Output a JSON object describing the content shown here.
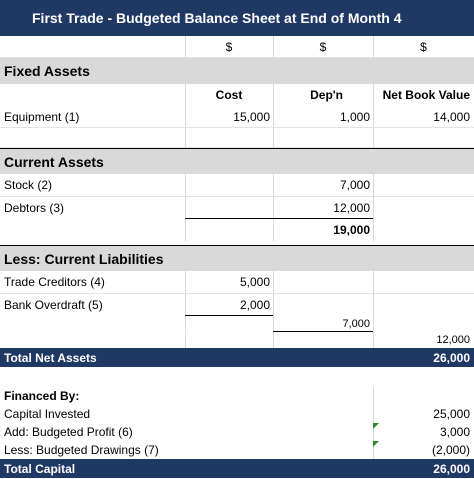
{
  "title": "First Trade - Budgeted Balance Sheet at  End of Month 4",
  "currency_row": [
    "$",
    "$",
    "$"
  ],
  "fixed_assets": {
    "heading": "Fixed Assets",
    "columns": [
      "Cost",
      "Dep'n",
      "Net Book Value"
    ],
    "rows": [
      {
        "label": "Equipment (1)",
        "cost": "15,000",
        "dep": "1,000",
        "nbv": "14,000"
      }
    ]
  },
  "current_assets": {
    "heading": "Current Assets",
    "rows": [
      {
        "label": "Stock (2)",
        "value": "7,000"
      },
      {
        "label": "Debtors (3)",
        "value": "12,000"
      }
    ],
    "total": "19,000"
  },
  "current_liabilities": {
    "heading": "Less: Current Liabilities",
    "rows": [
      {
        "label": "Trade Creditors (4)",
        "value": "5,000"
      },
      {
        "label": "Bank Overdraft (5)",
        "value": "2,000"
      }
    ],
    "total": "7,000",
    "working_capital": "12,000"
  },
  "total_net_assets": {
    "label": "Total Net Assets",
    "value": "26,000"
  },
  "financed_by": {
    "heading": "Financed By:",
    "rows": [
      {
        "label": "Capital Invested",
        "value": "25,000"
      },
      {
        "label": "Add: Budgeted Profit (6)",
        "value": "3,000"
      },
      {
        "label": "Less: Budgeted Drawings (7)",
        "value": "(2,000)"
      }
    ]
  },
  "total_capital": {
    "label": "Total Capital",
    "value": "26,000"
  },
  "colors": {
    "header_navy": "#1f3864",
    "section_grey": "#d9d9d9",
    "comment_marker": "#2e8b2e"
  }
}
